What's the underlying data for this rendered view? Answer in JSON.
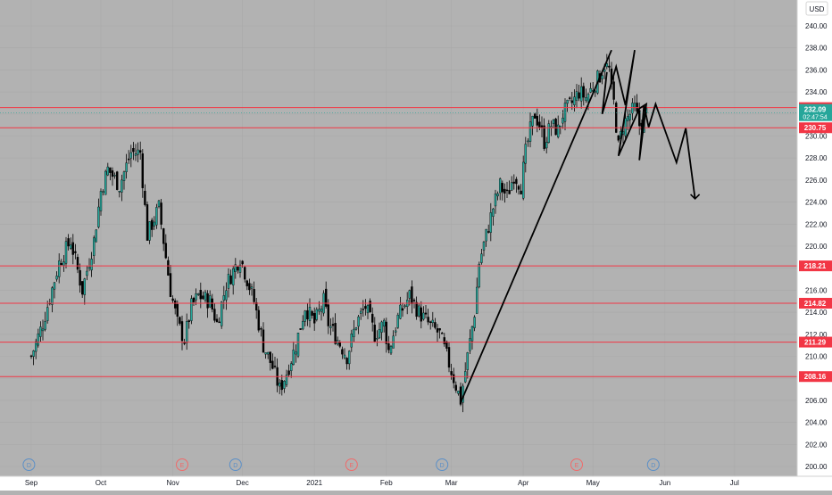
{
  "chart_data": {
    "type": "candlestick",
    "currency": "USD",
    "top_scale_label": "2",
    "ylim": [
      199,
      242
    ],
    "y_ticks": [
      200,
      202,
      204,
      206,
      208,
      210,
      212,
      214,
      216,
      218,
      220,
      222,
      224,
      226,
      228,
      230,
      232,
      234,
      236,
      238,
      240
    ],
    "x_ticks": [
      {
        "label": "Sep",
        "day": 0
      },
      {
        "label": "Oct",
        "day": 30
      },
      {
        "label": "Nov",
        "day": 61
      },
      {
        "label": "Dec",
        "day": 91
      },
      {
        "label": "2021",
        "day": 122
      },
      {
        "label": "Feb",
        "day": 153
      },
      {
        "label": "Mar",
        "day": 181
      },
      {
        "label": "Apr",
        "day": 212
      },
      {
        "label": "May",
        "day": 242
      },
      {
        "label": "Jun",
        "day": 273
      },
      {
        "label": "Jul",
        "day": 303
      }
    ],
    "levels": [
      {
        "value": 232.58,
        "label": "232.58"
      },
      {
        "value": 230.75,
        "label": "230.75"
      },
      {
        "value": 218.21,
        "label": "218.21"
      },
      {
        "value": 214.82,
        "label": "214.82"
      },
      {
        "value": 211.29,
        "label": "211.29"
      },
      {
        "value": 208.16,
        "label": "208.16"
      }
    ],
    "last_price": {
      "value": 232.09,
      "label": "232.09",
      "countdown": "02:47:54"
    },
    "events": [
      {
        "label": "D",
        "day": -1,
        "kind": "dividend"
      },
      {
        "label": "E",
        "day": 65,
        "kind": "earnings"
      },
      {
        "label": "D",
        "day": 88,
        "kind": "dividend"
      },
      {
        "label": "E",
        "day": 138,
        "kind": "earnings"
      },
      {
        "label": "D",
        "day": 177,
        "kind": "dividend"
      },
      {
        "label": "E",
        "day": 235,
        "kind": "earnings"
      },
      {
        "label": "D",
        "day": 268,
        "kind": "dividend"
      }
    ],
    "drawing": {
      "trend_line": [
        {
          "day": 185,
          "price": 205.8
        },
        {
          "day": 250,
          "price": 237.8
        }
      ],
      "pattern": [
        {
          "day": 248,
          "price": 235.8
        },
        {
          "day": 246,
          "price": 232
        },
        {
          "day": 252,
          "price": 236.3
        },
        {
          "day": 256,
          "price": 232.8
        },
        {
          "day": 260,
          "price": 237.8
        },
        {
          "day": 253,
          "price": 228.2
        },
        {
          "day": 262,
          "price": 232.5
        },
        {
          "day": 265,
          "price": 232.9
        },
        {
          "day": 262,
          "price": 227.8
        },
        {
          "day": 264,
          "price": 232.8
        },
        {
          "day": 266,
          "price": 230.8
        },
        {
          "day": 269,
          "price": 232.9
        },
        {
          "day": 278,
          "price": 227.6
        },
        {
          "day": 282,
          "price": 230.7
        },
        {
          "day": 286,
          "price": 224.3
        }
      ]
    },
    "candles_anchor_closes": [
      [
        0,
        210
      ],
      [
        5,
        213
      ],
      [
        12,
        218.5
      ],
      [
        17,
        220.5
      ],
      [
        22,
        216
      ],
      [
        27,
        220.5
      ],
      [
        30,
        225
      ],
      [
        33,
        227
      ],
      [
        38,
        225.5
      ],
      [
        43,
        228.5
      ],
      [
        47,
        228.5
      ],
      [
        48,
        226
      ],
      [
        50,
        221
      ],
      [
        55,
        223.5
      ],
      [
        60,
        216
      ],
      [
        63,
        213
      ],
      [
        66,
        211.5
      ],
      [
        69,
        214.5
      ],
      [
        72,
        215.5
      ],
      [
        77,
        215
      ],
      [
        80,
        213
      ],
      [
        84,
        216.5
      ],
      [
        90,
        219
      ],
      [
        93,
        217
      ],
      [
        96,
        215
      ],
      [
        100,
        211
      ],
      [
        104,
        209
      ],
      [
        107,
        207
      ],
      [
        110,
        208.5
      ],
      [
        114,
        211
      ],
      [
        118,
        214.5
      ],
      [
        122,
        213
      ],
      [
        126,
        215
      ],
      [
        128,
        213
      ],
      [
        132,
        211.5
      ],
      [
        136,
        210
      ],
      [
        140,
        213
      ],
      [
        144,
        214.5
      ],
      [
        148,
        212
      ],
      [
        152,
        213
      ],
      [
        154,
        210.5
      ],
      [
        158,
        213.5
      ],
      [
        163,
        215.5
      ],
      [
        167,
        214
      ],
      [
        171,
        213
      ],
      [
        176,
        212
      ],
      [
        179,
        210
      ],
      [
        182,
        208
      ],
      [
        185,
        206
      ],
      [
        188,
        210
      ],
      [
        191,
        214
      ],
      [
        193,
        218.5
      ],
      [
        196,
        221
      ],
      [
        199,
        223.5
      ],
      [
        202,
        225.5
      ],
      [
        205,
        224.5
      ],
      [
        208,
        226.5
      ],
      [
        211,
        225.5
      ],
      [
        213,
        228.5
      ],
      [
        215,
        230.5
      ],
      [
        217,
        232
      ],
      [
        219,
        231
      ],
      [
        221,
        229.5
      ],
      [
        224,
        231
      ],
      [
        227,
        230.5
      ],
      [
        229,
        232
      ],
      [
        231,
        232.5
      ],
      [
        233,
        233
      ],
      [
        236,
        234
      ],
      [
        239,
        233.5
      ],
      [
        242,
        234.5
      ],
      [
        245,
        235.5
      ],
      [
        247,
        236.5
      ],
      [
        249,
        236
      ],
      [
        250,
        234
      ],
      [
        251,
        233
      ],
      [
        253,
        229
      ],
      [
        255,
        231
      ],
      [
        258,
        232
      ],
      [
        260,
        232.5
      ],
      [
        262,
        231
      ],
      [
        264,
        231.5
      ],
      [
        265,
        232.1
      ]
    ]
  }
}
